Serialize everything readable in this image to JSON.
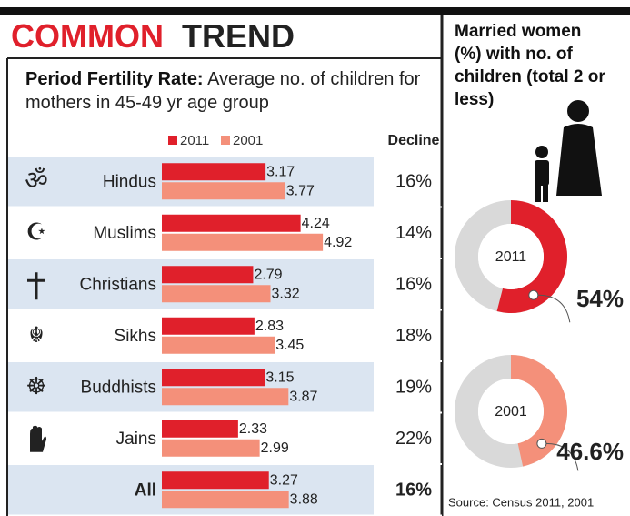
{
  "chart_data": [
    {
      "type": "bar",
      "title": [
        "COMMON",
        "TREND"
      ],
      "subtitle": [
        "Period Fertility Rate:",
        "Average no. of children for mothers in 45-49 yr age group"
      ],
      "categories": [
        "Hindus",
        "Muslims",
        "Christians",
        "Sikhs",
        "Buddhists",
        "Jains",
        "All"
      ],
      "series": [
        {
          "name": "2011",
          "color": "#e0202b",
          "values": [
            3.17,
            4.24,
            2.79,
            2.83,
            3.15,
            2.33,
            3.27
          ]
        },
        {
          "name": "2001",
          "color": "#f4907a",
          "values": [
            3.77,
            4.92,
            3.32,
            3.45,
            3.87,
            2.99,
            3.88
          ]
        }
      ],
      "decline": {
        "name": "Decline",
        "values": [
          16,
          14,
          16,
          18,
          19,
          22,
          16
        ],
        "value_labels": [
          "16%",
          "14%",
          "16%",
          "18%",
          "19%",
          "22%",
          "16%"
        ]
      },
      "xlim": [
        0,
        5
      ]
    },
    {
      "type": "donut",
      "title": "Married women (%) with no. of children (total 2 or less)",
      "categories": [
        "2011",
        "2001"
      ],
      "values": [
        54,
        46.6
      ],
      "value_labels": [
        "54%",
        "46.6%"
      ],
      "colors": [
        "#e0202b",
        "#f4907a"
      ],
      "rest_color": "#d9d9d9"
    }
  ],
  "source": "Source: Census 2011, 2001"
}
